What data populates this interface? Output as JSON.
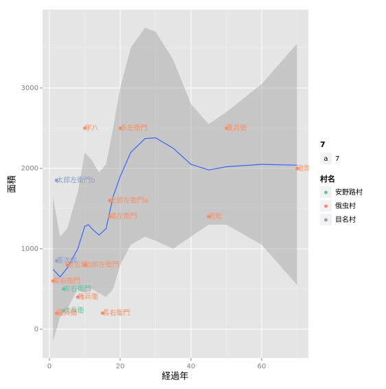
{
  "chart_data": {
    "type": "scatter",
    "x_label": "経過年",
    "y_label": "面積",
    "xlim": [
      -1.94,
      73.2
    ],
    "ylim": [
      -359,
      3974
    ],
    "xticks": [
      0,
      20,
      40,
      60
    ],
    "yticks": [
      0,
      1000,
      2000,
      3000
    ],
    "x_minor_grid": [
      10,
      30,
      50,
      70
    ],
    "y_minor_grid": [
      500,
      1500,
      2500,
      3500
    ],
    "size_legend": {
      "title": "7",
      "key": "a",
      "label": "7"
    },
    "legend_title": "村名",
    "series": [
      {
        "name": "安野路村",
        "color": "#66c2a5",
        "x": [
          4,
          4
        ],
        "values": [
          500,
          230
        ],
        "labels": [
          "安右衛門",
          "次兵衛"
        ]
      },
      {
        "name": "俄虫村",
        "color": "#fc8d62",
        "x": [
          10,
          20,
          50,
          70,
          17,
          17,
          45,
          5,
          10,
          1,
          8,
          2,
          15
        ],
        "values": [
          2500,
          2500,
          2500,
          2000,
          1600,
          1400,
          1400,
          800,
          800,
          600,
          400,
          200,
          200
        ],
        "labels": [
          "宇八",
          "多左衛門",
          "重兵衛",
          "治郎",
          "太郎左衛門a",
          "儀左衛門",
          "岩松",
          "甚五郎",
          "治郎左衛門",
          "藤右衛門",
          "権兵衛",
          "嘉兵衛",
          "長右衛門"
        ]
      },
      {
        "name": "目名村",
        "color": "#8da0cb",
        "x": [
          2,
          2
        ],
        "values": [
          1850,
          850
        ],
        "labels": [
          "太郎左衛門b",
          "重次郎"
        ]
      }
    ],
    "smooth": {
      "color": "#3366ff",
      "x": [
        1,
        3,
        5,
        8,
        10,
        11,
        12,
        14,
        16,
        18,
        20,
        23,
        27,
        30,
        35,
        40,
        45,
        50,
        60,
        70
      ],
      "y": [
        744,
        650,
        760,
        1000,
        1280,
        1300,
        1250,
        1170,
        1250,
        1650,
        1900,
        2200,
        2370,
        2380,
        2250,
        2050,
        1980,
        2020,
        2050,
        2040
      ],
      "ymin": [
        -150,
        150,
        250,
        500,
        450,
        470,
        500,
        450,
        400,
        500,
        800,
        1050,
        1150,
        1100,
        1000,
        1150,
        1300,
        1300,
        1050,
        550
      ],
      "ymax": [
        1650,
        1150,
        1250,
        1700,
        2200,
        2150,
        2100,
        1950,
        2050,
        2500,
        3000,
        3500,
        3750,
        3700,
        3350,
        2800,
        2550,
        2700,
        3050,
        3550
      ]
    }
  }
}
